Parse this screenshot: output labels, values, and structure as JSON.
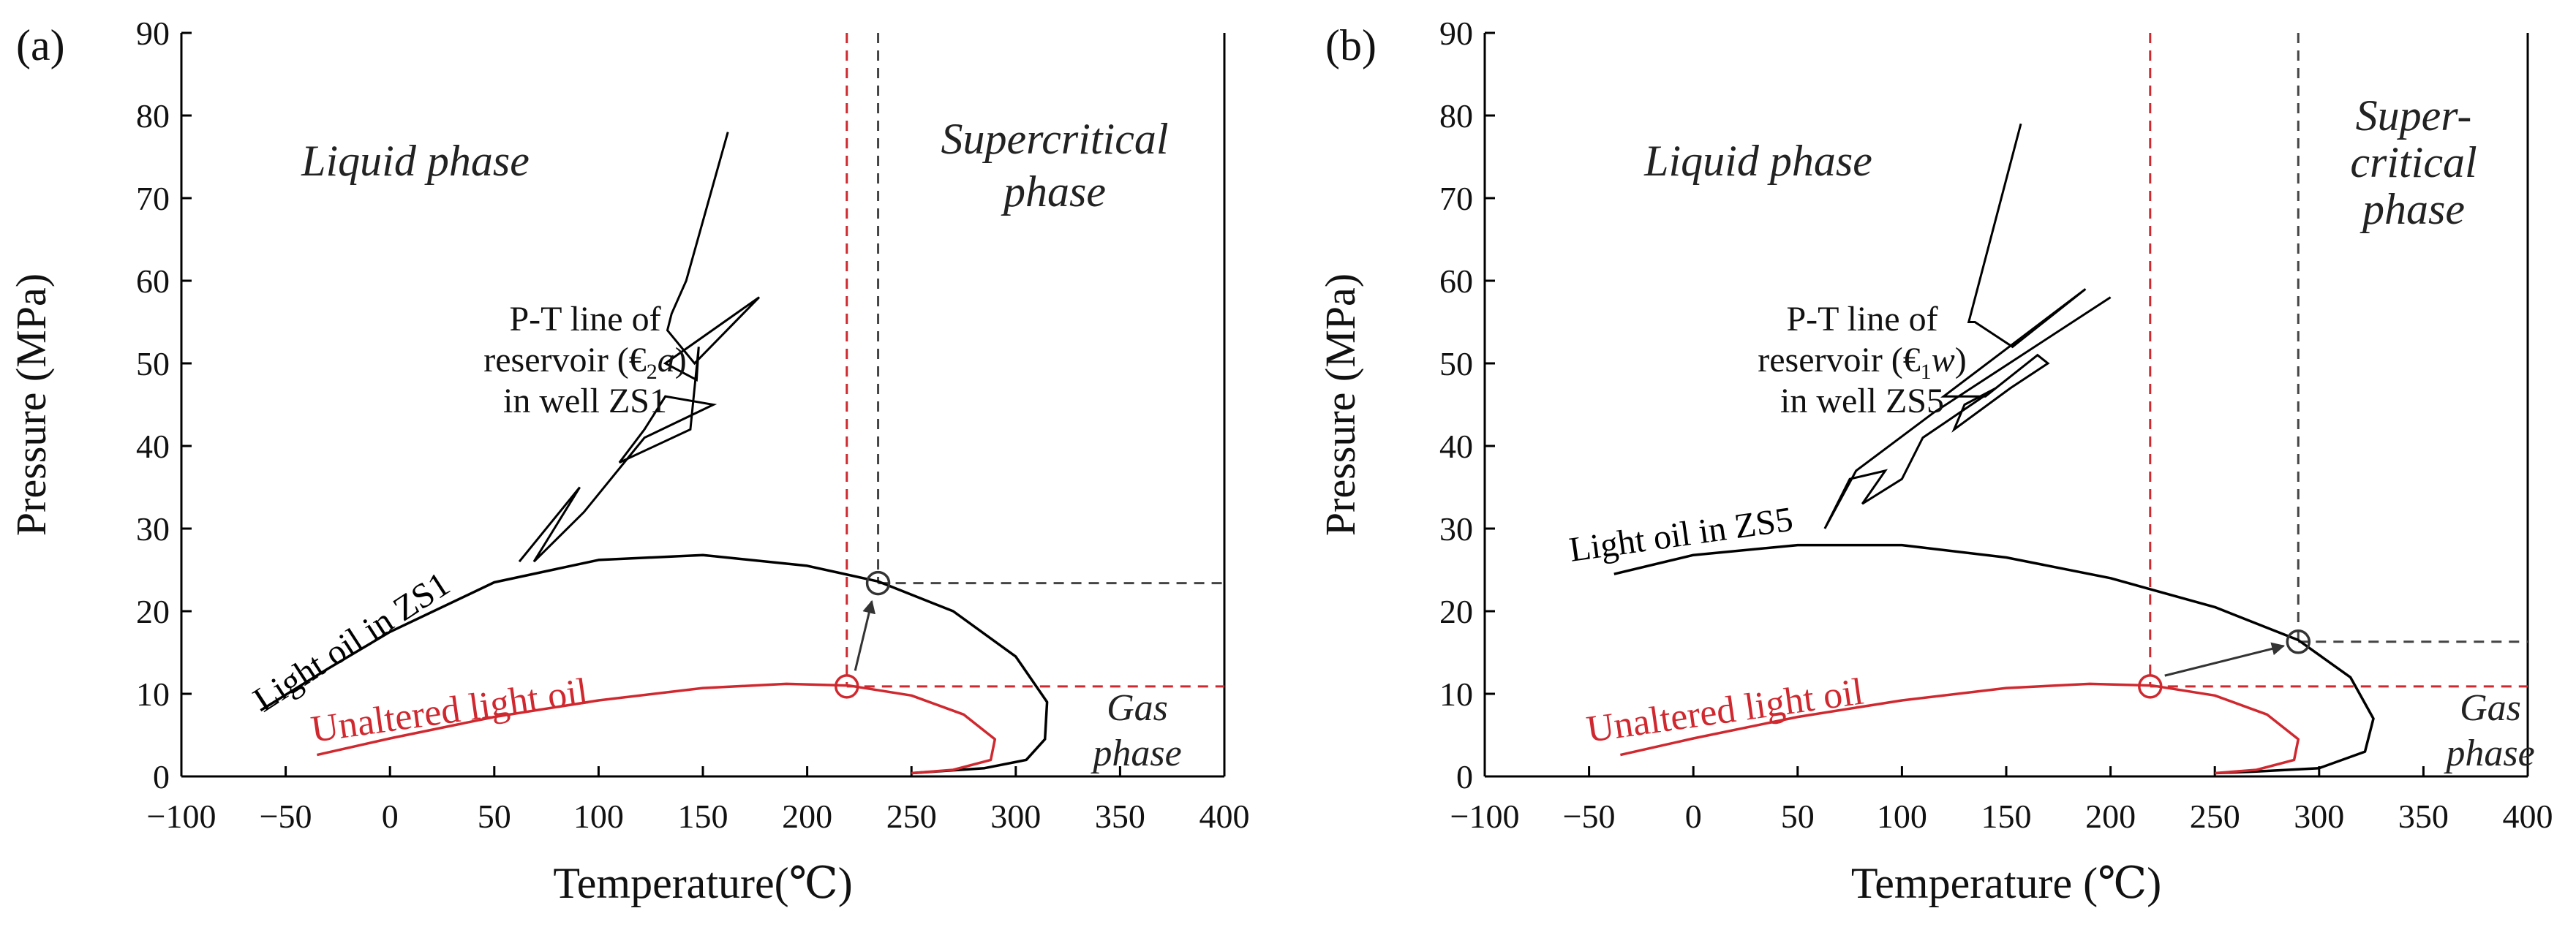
{
  "chart_data": [
    {
      "type": "line",
      "panel_label": "(a)",
      "xlabel": "Temperature(℃)",
      "ylabel": "Pressure (MPa)",
      "xlim": [
        -100,
        400
      ],
      "ylim": [
        0,
        90
      ],
      "xticks": [
        -100,
        -50,
        0,
        50,
        100,
        150,
        200,
        250,
        300,
        350,
        400
      ],
      "yticks": [
        0,
        10,
        20,
        30,
        40,
        50,
        60,
        70,
        80,
        90
      ],
      "xtick_labels": [
        "−100",
        "−50",
        "0",
        "50",
        "100",
        "150",
        "200",
        "250",
        "300",
        "350",
        "400"
      ],
      "ytick_labels": [
        "0",
        "10",
        "20",
        "30",
        "40",
        "50",
        "60",
        "70",
        "80",
        "90"
      ],
      "grid": false,
      "regions": {
        "liquid": {
          "lines": [
            "Liquid phase"
          ]
        },
        "supercritical": {
          "lines": [
            "Supercritical",
            "phase"
          ]
        },
        "gas": {
          "lines": [
            "Gas",
            "phase"
          ]
        }
      },
      "pt_label": [
        "P-T line of",
        "reservoir (€",
        "2",
        "a",
        ")",
        "in well ZS1"
      ],
      "pt_line": [
        [
          162,
          78
        ],
        [
          142,
          60
        ],
        [
          135,
          56
        ],
        [
          133,
          54
        ],
        [
          146,
          50
        ],
        [
          177,
          58
        ],
        [
          132,
          50
        ],
        [
          147,
          48
        ],
        [
          148,
          52
        ],
        [
          144,
          42
        ],
        [
          110,
          38
        ],
        [
          122,
          42
        ],
        [
          132,
          46
        ],
        [
          155,
          45
        ],
        [
          122,
          41
        ],
        [
          93,
          32
        ],
        [
          69,
          26
        ],
        [
          91,
          35
        ],
        [
          62,
          26
        ]
      ],
      "series": [
        {
          "name": "Light oil in ZS1",
          "label": "Light oil in ZS1",
          "color": "#000000",
          "points": [
            [
              -62,
              8
            ],
            [
              -30,
              13
            ],
            [
              0,
              17.5
            ],
            [
              50,
              23.5
            ],
            [
              100,
              26.2
            ],
            [
              150,
              26.8
            ],
            [
              200,
              25.5
            ],
            [
              234,
              23.6
            ],
            [
              270,
              20
            ],
            [
              300,
              14.5
            ],
            [
              315,
              9
            ],
            [
              314,
              4.5
            ],
            [
              305,
              2
            ],
            [
              285,
              1
            ],
            [
              250,
              0.4
            ]
          ]
        },
        {
          "name": "Unaltered light oil",
          "label": "Unaltered light oil",
          "color": "#d0282f",
          "points": [
            [
              -35,
              2.6
            ],
            [
              0,
              4.6
            ],
            [
              50,
              7.2
            ],
            [
              100,
              9.2
            ],
            [
              150,
              10.7
            ],
            [
              190,
              11.2
            ],
            [
              220,
              11
            ],
            [
              250,
              9.8
            ],
            [
              275,
              7.5
            ],
            [
              290,
              4.5
            ],
            [
              288,
              2
            ],
            [
              270,
              0.8
            ],
            [
              250,
              0.4
            ]
          ]
        }
      ],
      "critical_points": [
        {
          "name": "unaltered critical point",
          "x": 219,
          "y": 10.9,
          "color": "#d0282f"
        },
        {
          "name": "light oil critical point",
          "x": 234,
          "y": 23.4,
          "color": "#333333"
        }
      ],
      "shift_arrow": {
        "from": [
          223,
          12.8
        ],
        "to": [
          231,
          21.2
        ]
      },
      "ref_lines": {
        "red_x": 219,
        "red_y": 10.9,
        "black_x": 234,
        "black_y": 23.4,
        "red_top_x": 219,
        "black_top_x": 234
      }
    },
    {
      "type": "line",
      "panel_label": "(b)",
      "xlabel": "Temperature (℃)",
      "ylabel": "Pressure (MPa)",
      "xlim": [
        -100,
        400
      ],
      "ylim": [
        0,
        90
      ],
      "xticks": [
        -100,
        -50,
        0,
        50,
        100,
        150,
        200,
        250,
        300,
        350,
        400
      ],
      "yticks": [
        0,
        10,
        20,
        30,
        40,
        50,
        60,
        70,
        80,
        90
      ],
      "xtick_labels": [
        "−100",
        "−50",
        "0",
        "50",
        "100",
        "150",
        "200",
        "250",
        "300",
        "350",
        "400"
      ],
      "ytick_labels": [
        "0",
        "10",
        "20",
        "30",
        "40",
        "50",
        "60",
        "70",
        "80",
        "90"
      ],
      "grid": false,
      "regions": {
        "liquid": {
          "lines": [
            "Liquid phase"
          ]
        },
        "supercritical": {
          "lines": [
            "Super-",
            "critical",
            "phase"
          ]
        },
        "gas": {
          "lines": [
            "Gas",
            "phase"
          ]
        }
      },
      "pt_label": [
        "P-T line of",
        "reservoir (€",
        "1",
        "w",
        ")",
        "in well ZS5"
      ],
      "pt_line": [
        [
          157,
          79
        ],
        [
          132,
          55
        ],
        [
          135,
          55
        ],
        [
          153,
          52
        ],
        [
          188,
          59
        ],
        [
          120,
          46
        ],
        [
          140,
          46
        ],
        [
          165,
          51
        ],
        [
          170,
          50
        ],
        [
          152,
          47
        ],
        [
          125,
          42
        ],
        [
          130,
          45
        ],
        [
          145,
          47
        ],
        [
          110,
          41
        ],
        [
          100,
          36
        ],
        [
          81,
          33
        ],
        [
          92,
          37
        ],
        [
          75,
          36
        ],
        [
          63,
          30
        ],
        [
          78,
          37
        ],
        [
          115,
          44
        ],
        [
          200,
          58
        ]
      ],
      "series": [
        {
          "name": "Light oil in ZS5",
          "label": "Light oil in ZS5",
          "color": "#000000",
          "points": [
            [
              -38,
              24.5
            ],
            [
              0,
              26.8
            ],
            [
              50,
              28
            ],
            [
              100,
              28
            ],
            [
              150,
              26.5
            ],
            [
              200,
              24
            ],
            [
              250,
              20.5
            ],
            [
              290,
              16.5
            ],
            [
              315,
              12
            ],
            [
              326,
              7
            ],
            [
              322,
              3
            ],
            [
              300,
              1
            ],
            [
              270,
              0.6
            ],
            [
              250,
              0.4
            ]
          ]
        },
        {
          "name": "Unaltered light oil",
          "label": "Unaltered light oil",
          "color": "#d0282f",
          "points": [
            [
              -35,
              2.6
            ],
            [
              0,
              4.6
            ],
            [
              50,
              7.2
            ],
            [
              100,
              9.2
            ],
            [
              150,
              10.7
            ],
            [
              190,
              11.2
            ],
            [
              220,
              11
            ],
            [
              250,
              9.8
            ],
            [
              275,
              7.5
            ],
            [
              290,
              4.5
            ],
            [
              288,
              2
            ],
            [
              270,
              0.8
            ],
            [
              250,
              0.4
            ]
          ]
        }
      ],
      "critical_points": [
        {
          "name": "unaltered critical point",
          "x": 219,
          "y": 10.9,
          "color": "#d0282f"
        },
        {
          "name": "light oil critical point",
          "x": 290,
          "y": 16.3,
          "color": "#333333"
        }
      ],
      "shift_arrow": {
        "from": [
          226,
          12.2
        ],
        "to": [
          283,
          15.8
        ]
      },
      "ref_lines": {
        "red_x": 219,
        "red_y": 10.9,
        "black_x": 290,
        "black_y": 16.3,
        "red_top_x": 219,
        "black_top_x": 290
      }
    }
  ]
}
